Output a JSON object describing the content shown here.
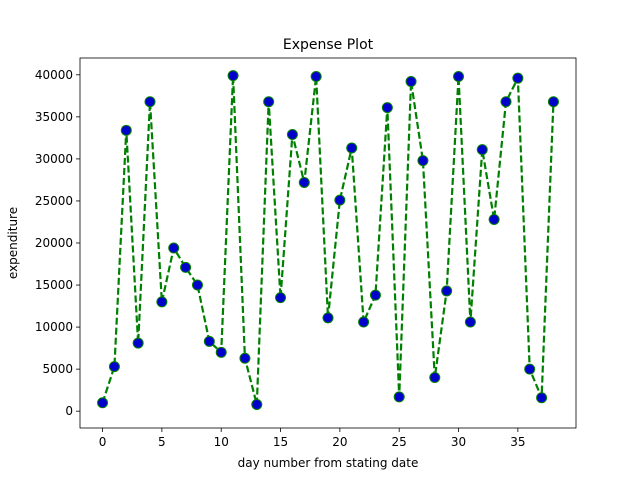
{
  "chart_data": {
    "type": "line",
    "title": "Expense Plot",
    "xlabel": "day number from stating date",
    "ylabel": "expenditure",
    "xlim": [
      -1.9,
      39.9
    ],
    "ylim": [
      -2000,
      42000
    ],
    "x_ticks": [
      0,
      5,
      10,
      15,
      20,
      25,
      30,
      35
    ],
    "y_ticks": [
      0,
      5000,
      10000,
      15000,
      20000,
      25000,
      30000,
      35000,
      40000
    ],
    "grid": false,
    "series": [
      {
        "line_color": "#008000",
        "line_style": "dashed",
        "marker_fill": "#0000cc",
        "marker_edge": "#008000",
        "x": [
          0,
          1,
          2,
          3,
          4,
          5,
          6,
          7,
          8,
          9,
          10,
          11,
          12,
          13,
          14,
          15,
          16,
          17,
          18,
          19,
          20,
          21,
          22,
          23,
          24,
          25,
          26,
          27,
          28,
          29,
          30,
          31,
          32,
          33,
          34,
          35,
          36,
          37,
          38
        ],
        "values": [
          1000,
          5300,
          33400,
          8100,
          36800,
          13000,
          19400,
          17100,
          15000,
          8300,
          7000,
          39900,
          6300,
          800,
          36800,
          13500,
          32900,
          27200,
          39800,
          11100,
          25100,
          31300,
          10600,
          13800,
          36100,
          1700,
          39200,
          29800,
          4000,
          14300,
          39800,
          10600,
          31100,
          22800,
          36800,
          39600,
          5000,
          1600,
          36800
        ]
      }
    ]
  }
}
